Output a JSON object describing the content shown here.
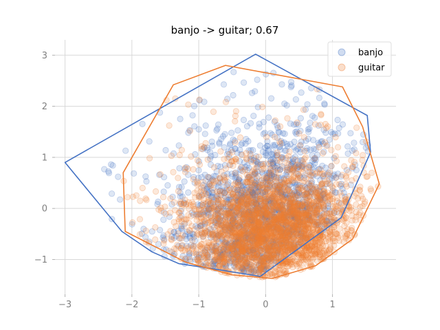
{
  "chart_data": {
    "type": "scatter",
    "title": "banjo -> guitar; 0.67",
    "xlabel": "",
    "ylabel": "",
    "xlim": [
      -3.15,
      1.95
    ],
    "ylim": [
      -1.68,
      3.3
    ],
    "xticks": [
      -3,
      -2,
      -1,
      0,
      1
    ],
    "yticks": [
      -1,
      0,
      1,
      2,
      3
    ],
    "xtick_labels": [
      "−3",
      "−2",
      "−1",
      "0",
      "1"
    ],
    "ytick_labels": [
      "−1",
      "0",
      "1",
      "2",
      "3"
    ],
    "grid": true,
    "legend_placement": "top-right",
    "legend": [
      {
        "name": "banjo",
        "color": "#4472C4"
      },
      {
        "name": "guitar",
        "color": "#ED7D31"
      }
    ],
    "series": [
      {
        "name": "banjo",
        "color": "#4472C4",
        "marker": "circle",
        "alpha": 0.2,
        "point_count_estimate": 1500,
        "cloud": {
          "cx": 0.0,
          "cy": -0.3,
          "sx": 0.62,
          "sy": 0.85,
          "rho": 0.05
        },
        "hull": [
          [
            -3.0,
            0.9
          ],
          [
            -0.15,
            3.02
          ],
          [
            1.52,
            1.82
          ],
          [
            1.57,
            1.1
          ],
          [
            1.13,
            -0.18
          ],
          [
            -0.08,
            -1.33
          ],
          [
            -0.85,
            -1.17
          ],
          [
            -1.3,
            -1.08
          ],
          [
            -1.7,
            -0.85
          ],
          [
            -2.15,
            -0.45
          ]
        ]
      },
      {
        "name": "guitar",
        "color": "#ED7D31",
        "marker": "circle",
        "alpha": 0.2,
        "point_count_estimate": 2500,
        "cloud": {
          "cx": 0.1,
          "cy": -0.45,
          "sx": 0.6,
          "sy": 0.6,
          "rho": 0.1
        },
        "hull": [
          [
            -2.13,
            0.7
          ],
          [
            -1.38,
            2.42
          ],
          [
            -0.6,
            2.8
          ],
          [
            1.15,
            2.38
          ],
          [
            1.45,
            1.6
          ],
          [
            1.7,
            0.48
          ],
          [
            1.3,
            -0.6
          ],
          [
            0.75,
            -1.12
          ],
          [
            0.1,
            -1.37
          ],
          [
            -0.5,
            -1.3
          ],
          [
            -1.2,
            -1.05
          ],
          [
            -1.8,
            -0.65
          ],
          [
            -2.1,
            -0.45
          ]
        ]
      }
    ]
  }
}
